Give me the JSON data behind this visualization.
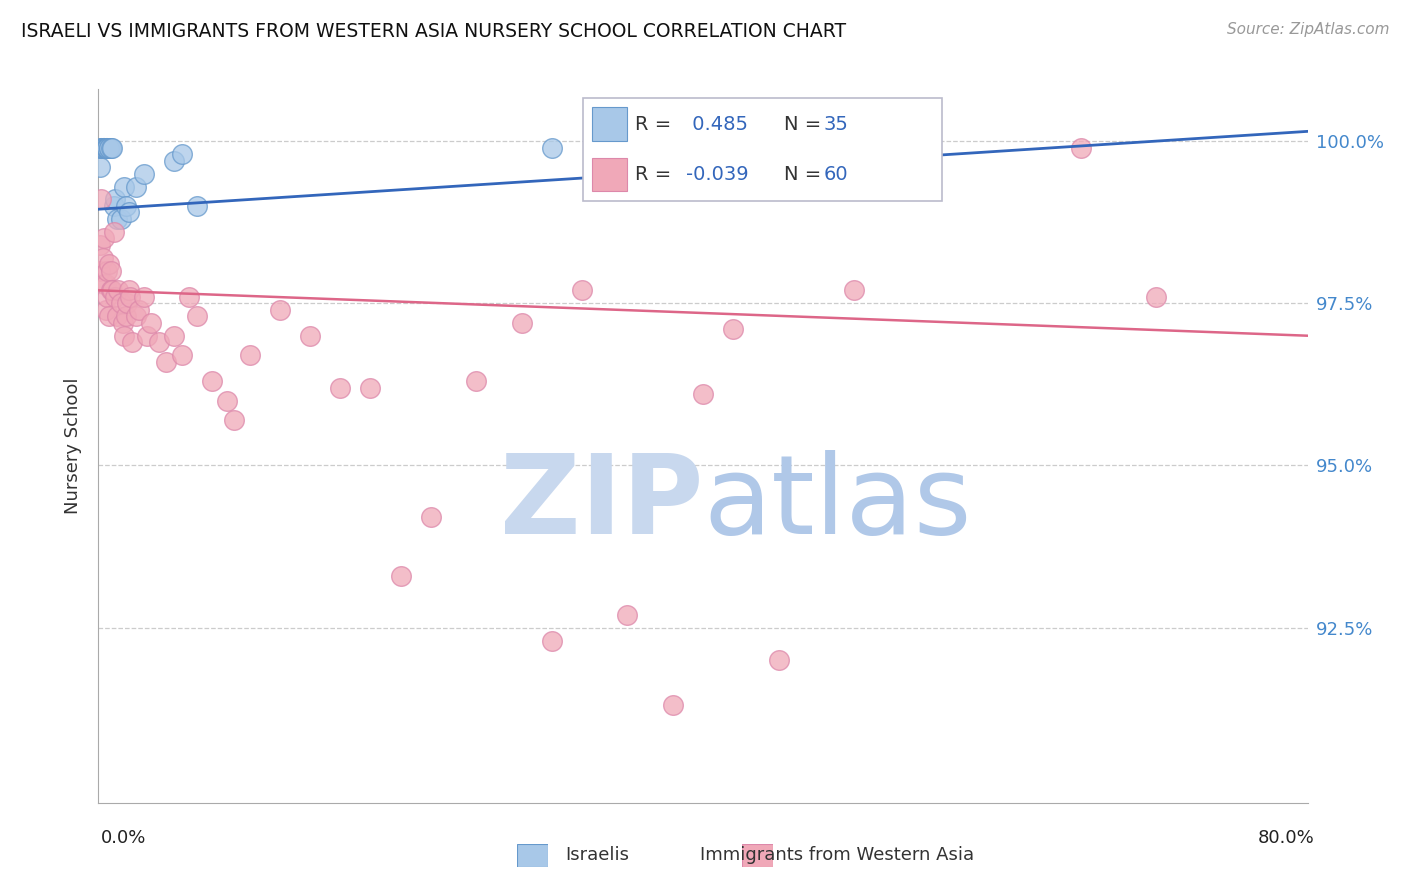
{
  "title": "ISRAELI VS IMMIGRANTS FROM WESTERN ASIA NURSERY SCHOOL CORRELATION CHART",
  "source": "Source: ZipAtlas.com",
  "ylabel": "Nursery School",
  "xlim": [
    0.0,
    0.8
  ],
  "ylim": [
    0.898,
    1.008
  ],
  "yticks": [
    0.925,
    0.95,
    0.975,
    1.0
  ],
  "ytick_labels": [
    "92.5%",
    "95.0%",
    "97.5%",
    "100.0%"
  ],
  "blue_color": "#a8c8e8",
  "pink_color": "#f0a8b8",
  "blue_line_color": "#3366bb",
  "pink_line_color": "#dd6688",
  "blue_scatter_edge": "#6699cc",
  "pink_scatter_edge": "#dd88aa",
  "watermark_zip_color": "#c8d8ee",
  "watermark_atlas_color": "#b0c8e8",
  "legend_r_blue": " 0.485",
  "legend_n_blue": "35",
  "legend_r_pink": "-0.039",
  "legend_n_pink": "60",
  "blue_x": [
    0.001,
    0.002,
    0.002,
    0.003,
    0.003,
    0.003,
    0.003,
    0.004,
    0.004,
    0.004,
    0.004,
    0.004,
    0.005,
    0.005,
    0.005,
    0.006,
    0.006,
    0.006,
    0.007,
    0.007,
    0.008,
    0.009,
    0.01,
    0.011,
    0.012,
    0.015,
    0.017,
    0.018,
    0.02,
    0.025,
    0.03,
    0.05,
    0.055,
    0.065,
    0.3
  ],
  "blue_y": [
    0.996,
    0.999,
    0.999,
    0.999,
    0.999,
    0.999,
    0.999,
    0.999,
    0.999,
    0.999,
    0.999,
    0.999,
    0.999,
    0.999,
    0.999,
    0.999,
    0.999,
    0.999,
    0.999,
    0.999,
    0.999,
    0.999,
    0.99,
    0.991,
    0.988,
    0.988,
    0.993,
    0.99,
    0.989,
    0.993,
    0.995,
    0.997,
    0.998,
    0.99,
    0.999
  ],
  "pink_x": [
    0.001,
    0.001,
    0.002,
    0.003,
    0.004,
    0.004,
    0.005,
    0.005,
    0.006,
    0.006,
    0.007,
    0.007,
    0.008,
    0.008,
    0.009,
    0.01,
    0.011,
    0.012,
    0.013,
    0.015,
    0.016,
    0.017,
    0.018,
    0.019,
    0.02,
    0.021,
    0.022,
    0.025,
    0.027,
    0.03,
    0.032,
    0.035,
    0.04,
    0.045,
    0.05,
    0.055,
    0.06,
    0.065,
    0.075,
    0.085,
    0.09,
    0.1,
    0.12,
    0.14,
    0.16,
    0.18,
    0.2,
    0.22,
    0.25,
    0.28,
    0.3,
    0.32,
    0.35,
    0.38,
    0.4,
    0.42,
    0.45,
    0.5,
    0.65,
    0.7
  ],
  "pink_y": [
    0.984,
    0.98,
    0.991,
    0.982,
    0.985,
    0.978,
    0.978,
    0.974,
    0.98,
    0.976,
    0.981,
    0.973,
    0.98,
    0.977,
    0.977,
    0.986,
    0.976,
    0.973,
    0.977,
    0.975,
    0.972,
    0.97,
    0.973,
    0.975,
    0.977,
    0.976,
    0.969,
    0.973,
    0.974,
    0.976,
    0.97,
    0.972,
    0.969,
    0.966,
    0.97,
    0.967,
    0.976,
    0.973,
    0.963,
    0.96,
    0.957,
    0.967,
    0.974,
    0.97,
    0.962,
    0.962,
    0.933,
    0.942,
    0.963,
    0.972,
    0.923,
    0.977,
    0.927,
    0.913,
    0.961,
    0.971,
    0.92,
    0.977,
    0.999,
    0.976
  ],
  "blue_line_x0": 0.0,
  "blue_line_x1": 0.8,
  "blue_line_y0": 0.9895,
  "blue_line_y1": 1.0015,
  "pink_line_x0": 0.0,
  "pink_line_x1": 0.8,
  "pink_line_y0": 0.977,
  "pink_line_y1": 0.97
}
